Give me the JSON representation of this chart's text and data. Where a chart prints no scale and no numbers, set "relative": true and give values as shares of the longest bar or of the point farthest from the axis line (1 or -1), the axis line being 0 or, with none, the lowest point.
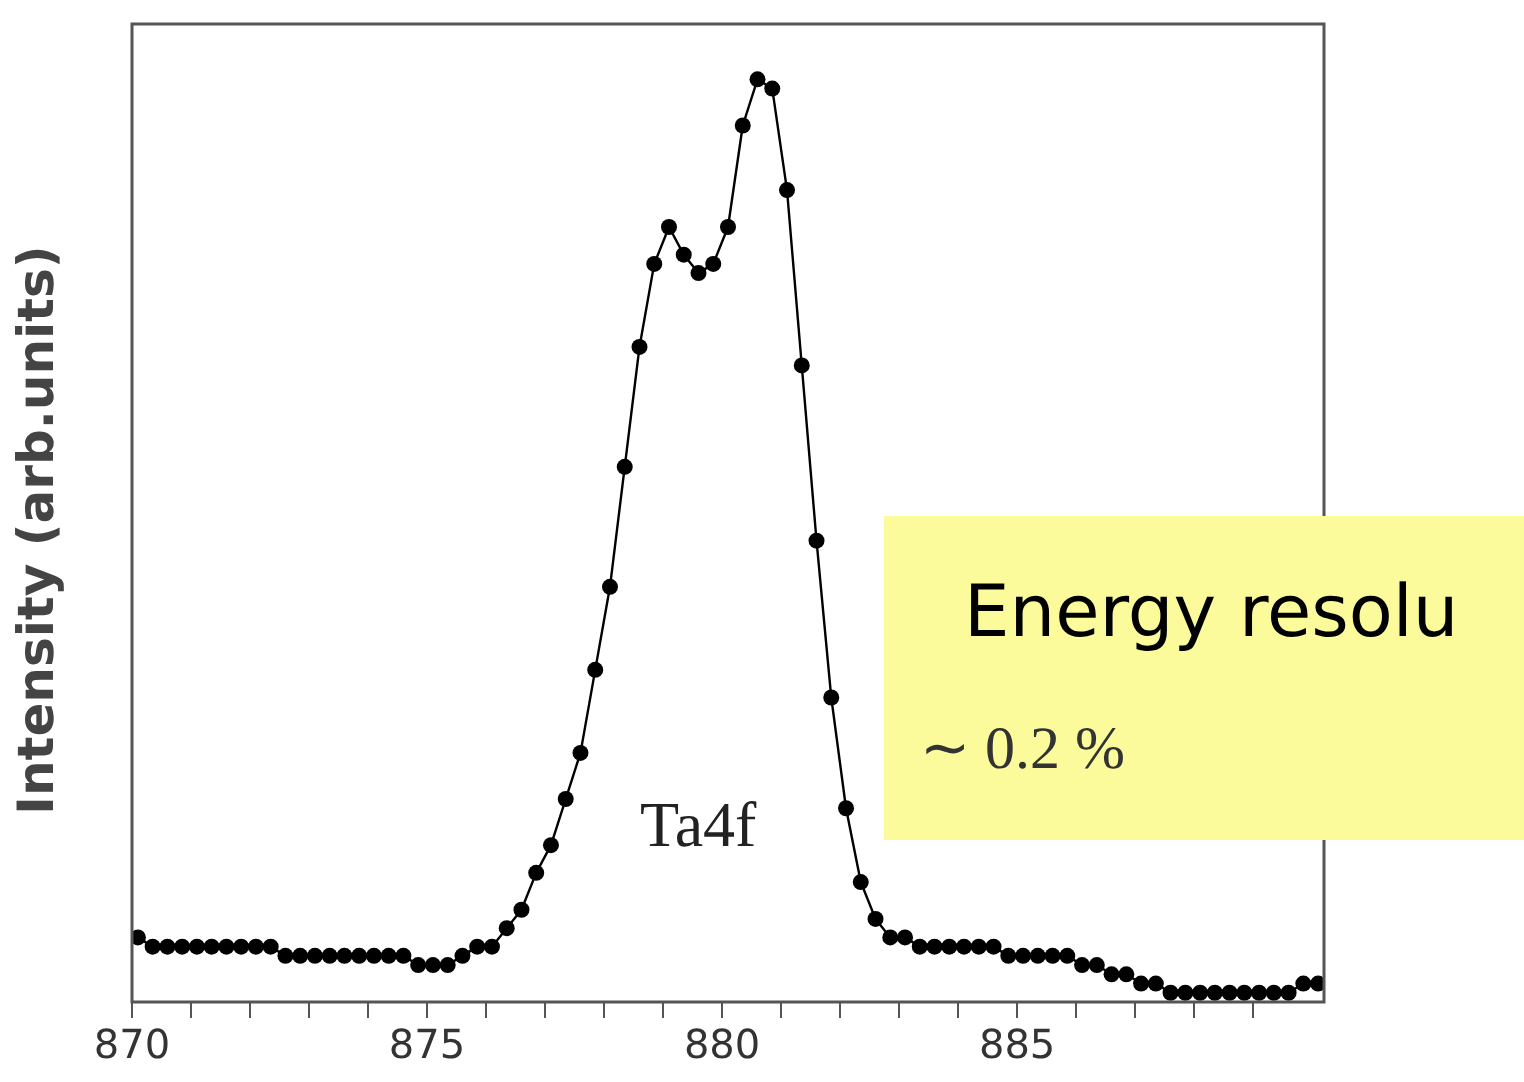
{
  "chart_data": {
    "type": "line",
    "ylabel": "Intensity (arb.units)",
    "relative": true,
    "marker": "circle",
    "line_style": "solid",
    "grid": false,
    "legend": false,
    "xlim": [
      870,
      890.2
    ],
    "xticks": [
      870,
      {
        "value": 871,
        "label": null
      },
      {
        "value": 872,
        "label": null
      },
      {
        "value": 873,
        "label": null
      },
      {
        "value": 874,
        "label": null
      },
      875,
      {
        "value": 876,
        "label": null
      },
      {
        "value": 877,
        "label": null
      },
      {
        "value": 878,
        "label": null
      },
      {
        "value": 879,
        "label": null
      },
      880,
      {
        "value": 881,
        "label": null
      },
      {
        "value": 882,
        "label": null
      },
      {
        "value": 883,
        "label": null
      },
      {
        "value": 884,
        "label": null
      },
      885,
      {
        "value": 886,
        "label": null
      },
      {
        "value": 887,
        "label": null
      },
      {
        "value": 888,
        "label": null
      },
      {
        "value": 889,
        "label": null
      }
    ],
    "x": [
      870.1,
      870.35,
      870.6,
      870.85,
      871.1,
      871.35,
      871.6,
      871.85,
      872.1,
      872.35,
      872.6,
      872.85,
      873.1,
      873.35,
      873.6,
      873.85,
      874.1,
      874.35,
      874.6,
      874.85,
      875.1,
      875.35,
      875.6,
      875.85,
      876.1,
      876.35,
      876.6,
      876.85,
      877.1,
      877.35,
      877.6,
      877.85,
      878.1,
      878.35,
      878.6,
      878.85,
      879.1,
      879.35,
      879.6,
      879.85,
      880.1,
      880.35,
      880.6,
      880.85,
      881.1,
      881.35,
      881.6,
      881.85,
      882.1,
      882.35,
      882.6,
      882.85,
      883.1,
      883.35,
      883.6,
      883.85,
      884.1,
      884.35,
      884.6,
      884.85,
      885.1,
      885.35,
      885.6,
      885.85,
      886.1,
      886.35,
      886.6,
      886.85,
      887.1,
      887.35,
      887.6,
      887.85,
      888.1,
      888.35,
      888.6,
      888.85,
      889.1,
      889.35,
      889.6,
      889.85,
      890.1
    ],
    "series": [
      {
        "color": "#000000",
        "values": [
          0.07,
          0.06,
          0.06,
          0.06,
          0.06,
          0.06,
          0.06,
          0.06,
          0.06,
          0.06,
          0.05,
          0.05,
          0.05,
          0.05,
          0.05,
          0.05,
          0.05,
          0.05,
          0.05,
          0.04,
          0.04,
          0.04,
          0.05,
          0.06,
          0.06,
          0.08,
          0.1,
          0.14,
          0.17,
          0.22,
          0.27,
          0.36,
          0.45,
          0.58,
          0.71,
          0.8,
          0.84,
          0.81,
          0.79,
          0.8,
          0.84,
          0.95,
          1,
          0.99,
          0.88,
          0.69,
          0.5,
          0.33,
          0.21,
          0.13,
          0.09,
          0.07,
          0.07,
          0.06,
          0.06,
          0.06,
          0.06,
          0.06,
          0.06,
          0.05,
          0.05,
          0.05,
          0.05,
          0.05,
          0.04,
          0.04,
          0.03,
          0.03,
          0.02,
          0.02,
          0.01,
          0.01,
          0.01,
          0.01,
          0.01,
          0.01,
          0.01,
          0.01,
          0.01,
          0.02,
          0.02
        ]
      }
    ],
    "annotations": [
      "Ta4f",
      "Energy resolu",
      "∼ 0.2 %"
    ]
  }
}
